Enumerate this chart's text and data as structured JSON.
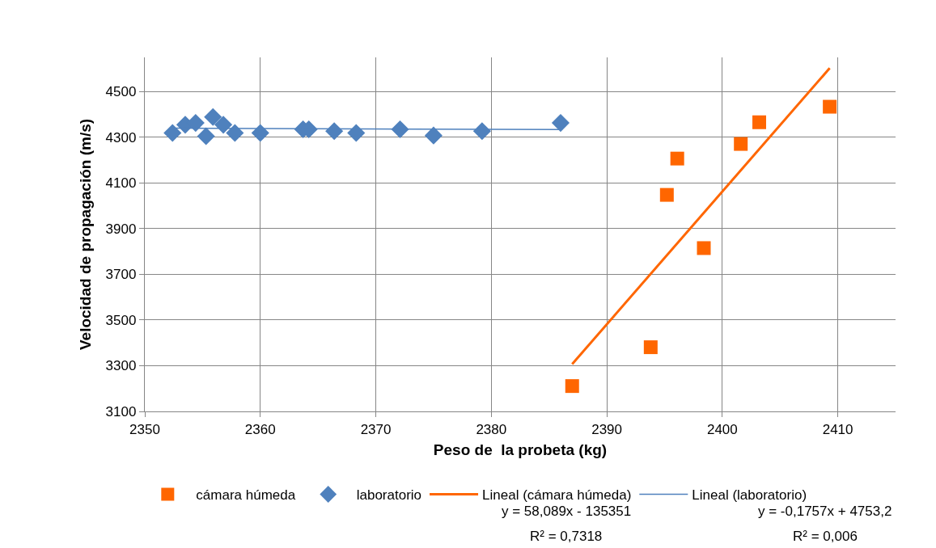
{
  "chart_data": {
    "type": "scatter",
    "xlabel": "Peso de  la probeta (kg)",
    "ylabel": "Velocidad de propagación (m/s)",
    "xlim": [
      2350,
      2415
    ],
    "xticks": [
      2350,
      2360,
      2370,
      2380,
      2390,
      2400,
      2410
    ],
    "ylim": [
      3100,
      4650
    ],
    "yticks": [
      3100,
      3300,
      3500,
      3700,
      3900,
      4100,
      4300,
      4500
    ],
    "grid": true,
    "legend": "bottom",
    "series": [
      {
        "name": "cámara húmeda",
        "marker": "square",
        "color": "#ff6600",
        "x": [
          2387.0,
          2393.8,
          2395.2,
          2396.1,
          2398.4,
          2401.6,
          2403.2,
          2409.3
        ],
        "values": [
          3211,
          3381,
          4048,
          4207,
          3815,
          4271,
          4366,
          4434
        ]
      },
      {
        "name": "laboratorio",
        "marker": "diamond",
        "color": "#4f81bd",
        "x": [
          2352.4,
          2353.5,
          2354.4,
          2355.3,
          2355.9,
          2356.8,
          2357.8,
          2360.0,
          2363.7,
          2364.2,
          2366.4,
          2368.3,
          2372.1,
          2375.0,
          2379.2,
          2386.0
        ],
        "values": [
          4319,
          4355,
          4363,
          4305,
          4389,
          4355,
          4319,
          4319,
          4335,
          4335,
          4327,
          4319,
          4335,
          4308,
          4327,
          4363
        ]
      },
      {
        "name": "Lineal (cámara húmeda)",
        "type": "line",
        "marker": "none",
        "color": "#ff6600",
        "x": [
          2387.0,
          2409.3
        ],
        "values": [
          3307,
          4603
        ]
      },
      {
        "name": "Lineal (laboratorio)",
        "type": "line",
        "marker": "none",
        "color": "#4f81bd",
        "x": [
          2352.4,
          2386.0
        ],
        "values": [
          4340,
          4334
        ]
      }
    ],
    "annotations": [
      "y = 58,089x - 135351",
      "R² = 0,7318",
      "y = -0,1757x + 4753,2",
      "R² = 0,006"
    ]
  }
}
